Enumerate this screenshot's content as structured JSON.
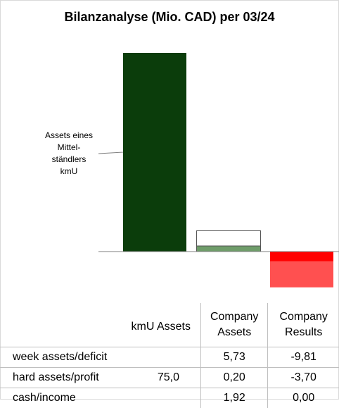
{
  "chart_data": {
    "type": "bar",
    "title": "Bilanzanalyse  (Mio. CAD) per 03/24",
    "annotation": [
      "Assets eines",
      "Mittel-",
      "ständlers",
      "kmU"
    ],
    "categories": [
      "kmU Assets",
      "Company Assets",
      "Company Results"
    ],
    "series": [
      {
        "name": "hard assets/profit",
        "values": [
          75.0,
          0.2,
          -3.7
        ]
      },
      {
        "name": "cash/income",
        "values": [
          null,
          1.92,
          0.0
        ]
      },
      {
        "name": "week assets/deficit",
        "values": [
          null,
          5.73,
          -9.81
        ]
      }
    ],
    "colors": {
      "kmU Assets": "#0b3d0b",
      "Company Assets": [
        "#6f9d6a",
        "#ffffff"
      ],
      "Company Results": [
        "#ff0000",
        "#ff5050"
      ]
    },
    "ylim": [
      -14,
      79
    ],
    "grid": false,
    "legend": "none"
  },
  "table": {
    "headers": [
      "",
      "kmU Assets",
      "Company|Assets",
      "Company|Results"
    ],
    "rows": [
      {
        "label": "week assets/deficit",
        "cells": [
          "",
          "5,73",
          "-9,81"
        ]
      },
      {
        "label": "hard assets/profit",
        "cells": [
          "75,0",
          "0,20",
          "-3,70"
        ]
      },
      {
        "label": "cash/income",
        "cells": [
          "",
          "1,92",
          "0,00"
        ]
      }
    ]
  }
}
